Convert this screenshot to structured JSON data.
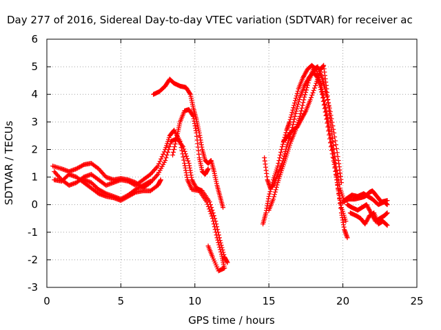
{
  "chart_data": {
    "type": "scatter",
    "title": "Day 277 of 2016, Sidereal Day-to-day VTEC variation (SDTVAR) for receiver ac",
    "xlabel": "GPS time / hours",
    "ylabel": "SDTVAR / TECUs",
    "xlim": [
      0,
      25
    ],
    "ylim": [
      -3,
      6
    ],
    "x_ticks": [
      0,
      5,
      10,
      15,
      20,
      25
    ],
    "y_ticks": [
      -3,
      -2,
      -1,
      0,
      1,
      2,
      3,
      4,
      5,
      6
    ],
    "x_tick_labels": [
      "0",
      "5",
      "10",
      "15",
      "20",
      "25"
    ],
    "y_tick_labels": [
      "-3",
      "-2",
      "-1",
      "0",
      "1",
      "2",
      "3",
      "4",
      "5",
      "6"
    ],
    "grid": true,
    "marker": "plus",
    "marker_color": "#ff0000",
    "series": [
      {
        "points": [
          [
            0.4,
            1.4
          ],
          [
            1.0,
            1.3
          ],
          [
            1.5,
            1.2
          ],
          [
            2.0,
            1.3
          ],
          [
            2.5,
            1.45
          ],
          [
            3.0,
            1.5
          ],
          [
            3.5,
            1.3
          ],
          [
            4.0,
            1.0
          ],
          [
            4.5,
            0.9
          ],
          [
            5.0,
            0.95
          ],
          [
            5.5,
            0.9
          ],
          [
            6.0,
            0.8
          ],
          [
            6.5,
            0.6
          ],
          [
            7.0,
            0.8
          ],
          [
            7.5,
            1.1
          ],
          [
            8.0,
            1.6
          ],
          [
            8.4,
            2.3
          ],
          [
            8.8,
            2.4
          ],
          [
            9.2,
            2.1
          ],
          [
            9.6,
            1.5
          ],
          [
            9.8,
            0.9
          ],
          [
            10.1,
            0.6
          ],
          [
            10.5,
            0.5
          ],
          [
            11.0,
            0.1
          ],
          [
            11.4,
            -0.6
          ],
          [
            11.7,
            -1.3
          ],
          [
            12.0,
            -1.9
          ],
          [
            12.2,
            -2.1
          ]
        ]
      },
      {
        "points": [
          [
            0.5,
            1.2
          ],
          [
            1.0,
            0.9
          ],
          [
            1.5,
            0.7
          ],
          [
            2.0,
            0.8
          ],
          [
            2.5,
            1.0
          ],
          [
            3.0,
            1.1
          ],
          [
            3.5,
            0.9
          ],
          [
            4.0,
            0.7
          ],
          [
            4.5,
            0.8
          ],
          [
            5.0,
            0.9
          ],
          [
            5.5,
            0.85
          ],
          [
            6.0,
            0.7
          ],
          [
            6.5,
            0.9
          ],
          [
            7.0,
            1.1
          ],
          [
            7.5,
            1.4
          ],
          [
            8.0,
            2.0
          ],
          [
            8.3,
            2.5
          ],
          [
            8.6,
            2.7
          ],
          [
            9.0,
            2.3
          ],
          [
            9.3,
            1.5
          ],
          [
            9.5,
            0.9
          ],
          [
            9.8,
            0.55
          ],
          [
            10.3,
            0.5
          ],
          [
            10.8,
            0.1
          ],
          [
            11.2,
            -0.5
          ],
          [
            11.5,
            -1.2
          ],
          [
            11.8,
            -1.8
          ],
          [
            12.0,
            -2.3
          ],
          [
            11.6,
            -2.4
          ],
          [
            11.2,
            -1.9
          ],
          [
            10.9,
            -1.5
          ]
        ]
      },
      {
        "points": [
          [
            0.5,
            0.9
          ],
          [
            1.0,
            0.85
          ],
          [
            1.5,
            1.1
          ],
          [
            2.0,
            1.0
          ],
          [
            2.5,
            0.8
          ],
          [
            3.0,
            0.6
          ],
          [
            3.5,
            0.4
          ],
          [
            4.0,
            0.3
          ],
          [
            4.5,
            0.25
          ],
          [
            5.0,
            0.15
          ],
          [
            5.5,
            0.3
          ],
          [
            6.0,
            0.45
          ],
          [
            6.5,
            0.5
          ],
          [
            7.0,
            0.5
          ],
          [
            7.5,
            0.7
          ],
          [
            7.7,
            0.9
          ]
        ]
      },
      {
        "points": [
          [
            2.5,
            0.9
          ],
          [
            3.0,
            0.8
          ],
          [
            3.5,
            0.55
          ],
          [
            4.0,
            0.4
          ],
          [
            4.5,
            0.3
          ],
          [
            5.0,
            0.2
          ],
          [
            5.5,
            0.35
          ],
          [
            6.0,
            0.55
          ],
          [
            6.5,
            0.7
          ],
          [
            7.0,
            0.85
          ]
        ]
      },
      {
        "points": [
          [
            7.2,
            4.0
          ],
          [
            7.6,
            4.1
          ],
          [
            8.0,
            4.3
          ],
          [
            8.3,
            4.55
          ],
          [
            8.6,
            4.4
          ],
          [
            9.0,
            4.3
          ],
          [
            9.4,
            4.25
          ],
          [
            9.7,
            4.0
          ],
          [
            9.9,
            3.5
          ],
          [
            10.1,
            3.1
          ],
          [
            10.3,
            2.6
          ],
          [
            10.5,
            2.0
          ],
          [
            10.7,
            1.6
          ],
          [
            10.9,
            1.5
          ],
          [
            11.1,
            1.6
          ],
          [
            11.3,
            1.2
          ],
          [
            11.5,
            0.7
          ],
          [
            11.7,
            0.3
          ],
          [
            11.9,
            -0.1
          ]
        ]
      },
      {
        "points": [
          [
            8.5,
            1.8
          ],
          [
            8.8,
            2.5
          ],
          [
            9.0,
            3.0
          ],
          [
            9.3,
            3.4
          ],
          [
            9.6,
            3.45
          ],
          [
            9.9,
            3.2
          ],
          [
            10.1,
            2.6
          ],
          [
            10.3,
            1.7
          ],
          [
            10.5,
            1.2
          ],
          [
            10.7,
            1.1
          ],
          [
            10.9,
            1.3
          ]
        ]
      },
      {
        "points": [
          [
            14.6,
            -0.7
          ],
          [
            14.8,
            -0.3
          ],
          [
            15.0,
            0.3
          ],
          [
            15.3,
            0.9
          ],
          [
            15.6,
            1.4
          ],
          [
            15.9,
            2.1
          ],
          [
            16.2,
            2.7
          ],
          [
            16.4,
            3.0
          ],
          [
            16.7,
            3.6
          ],
          [
            17.0,
            4.2
          ],
          [
            17.3,
            4.6
          ],
          [
            17.6,
            4.9
          ],
          [
            17.9,
            5.05
          ],
          [
            18.2,
            4.9
          ],
          [
            18.5,
            4.4
          ],
          [
            18.7,
            3.9
          ],
          [
            19.0,
            3.0
          ],
          [
            19.3,
            2.0
          ],
          [
            19.6,
            0.9
          ],
          [
            19.9,
            -0.3
          ],
          [
            20.1,
            -0.9
          ],
          [
            20.3,
            -1.2
          ]
        ]
      },
      {
        "points": [
          [
            14.7,
            1.7
          ],
          [
            14.9,
            0.9
          ],
          [
            15.1,
            0.6
          ],
          [
            15.3,
            0.7
          ],
          [
            15.6,
            1.1
          ],
          [
            15.9,
            1.5
          ],
          [
            16.2,
            2.1
          ],
          [
            16.5,
            2.6
          ],
          [
            16.8,
            3.3
          ],
          [
            17.1,
            3.9
          ],
          [
            17.4,
            4.3
          ],
          [
            17.7,
            4.6
          ],
          [
            18.0,
            4.8
          ],
          [
            18.3,
            4.6
          ],
          [
            18.6,
            4.0
          ],
          [
            18.9,
            3.1
          ],
          [
            19.2,
            2.1
          ],
          [
            19.5,
            1.2
          ],
          [
            19.7,
            0.5
          ],
          [
            19.9,
            -0.1
          ],
          [
            20.2,
            -0.6
          ]
        ]
      },
      {
        "points": [
          [
            15.0,
            -0.2
          ],
          [
            15.3,
            0.2
          ],
          [
            15.6,
            0.8
          ],
          [
            15.9,
            1.3
          ],
          [
            16.2,
            1.8
          ],
          [
            16.5,
            2.3
          ],
          [
            16.8,
            2.7
          ],
          [
            17.1,
            3.2
          ],
          [
            17.4,
            3.9
          ],
          [
            17.7,
            4.5
          ],
          [
            18.0,
            4.9
          ],
          [
            18.3,
            5.0
          ],
          [
            18.6,
            4.6
          ],
          [
            18.8,
            4.2
          ],
          [
            19.1,
            3.5
          ],
          [
            19.4,
            2.6
          ],
          [
            19.7,
            1.6
          ],
          [
            19.9,
            0.8
          ]
        ]
      },
      {
        "points": [
          [
            16.0,
            2.3
          ],
          [
            16.3,
            2.5
          ],
          [
            16.6,
            2.7
          ],
          [
            16.9,
            2.8
          ],
          [
            17.2,
            3.1
          ],
          [
            17.5,
            3.4
          ],
          [
            17.8,
            3.8
          ],
          [
            18.2,
            4.4
          ],
          [
            18.5,
            4.9
          ],
          [
            18.7,
            5.05
          ],
          [
            18.9,
            4.2
          ],
          [
            19.1,
            3.3
          ],
          [
            19.3,
            2.4
          ],
          [
            19.5,
            1.5
          ],
          [
            19.8,
            0.6
          ],
          [
            20.1,
            0.1
          ]
        ]
      },
      {
        "points": [
          [
            20.0,
            0.1
          ],
          [
            20.4,
            0.2
          ],
          [
            20.8,
            0.2
          ],
          [
            21.2,
            0.25
          ],
          [
            21.5,
            0.3
          ],
          [
            21.8,
            0.45
          ],
          [
            22.0,
            0.5
          ],
          [
            22.3,
            0.3
          ],
          [
            22.6,
            0.1
          ],
          [
            23.0,
            0.15
          ]
        ]
      },
      {
        "points": [
          [
            20.3,
            0.0
          ],
          [
            20.6,
            -0.1
          ],
          [
            21.0,
            -0.2
          ],
          [
            21.3,
            -0.1
          ],
          [
            21.6,
            0.0
          ],
          [
            21.9,
            -0.3
          ],
          [
            22.2,
            -0.6
          ],
          [
            22.5,
            -0.5
          ],
          [
            22.8,
            -0.4
          ],
          [
            23.0,
            -0.3
          ]
        ]
      },
      {
        "points": [
          [
            20.5,
            -0.3
          ],
          [
            20.9,
            -0.4
          ],
          [
            21.2,
            -0.5
          ],
          [
            21.5,
            -0.7
          ],
          [
            21.8,
            -0.4
          ],
          [
            22.1,
            -0.3
          ],
          [
            22.4,
            -0.7
          ],
          [
            22.7,
            -0.6
          ],
          [
            23.0,
            -0.75
          ]
        ]
      },
      {
        "points": [
          [
            20.2,
            0.2
          ],
          [
            20.6,
            0.35
          ],
          [
            21.0,
            0.3
          ],
          [
            21.4,
            0.4
          ],
          [
            21.7,
            0.3
          ],
          [
            22.0,
            0.2
          ],
          [
            22.4,
            0.0
          ],
          [
            22.8,
            0.1
          ],
          [
            23.0,
            0.0
          ]
        ]
      }
    ]
  }
}
